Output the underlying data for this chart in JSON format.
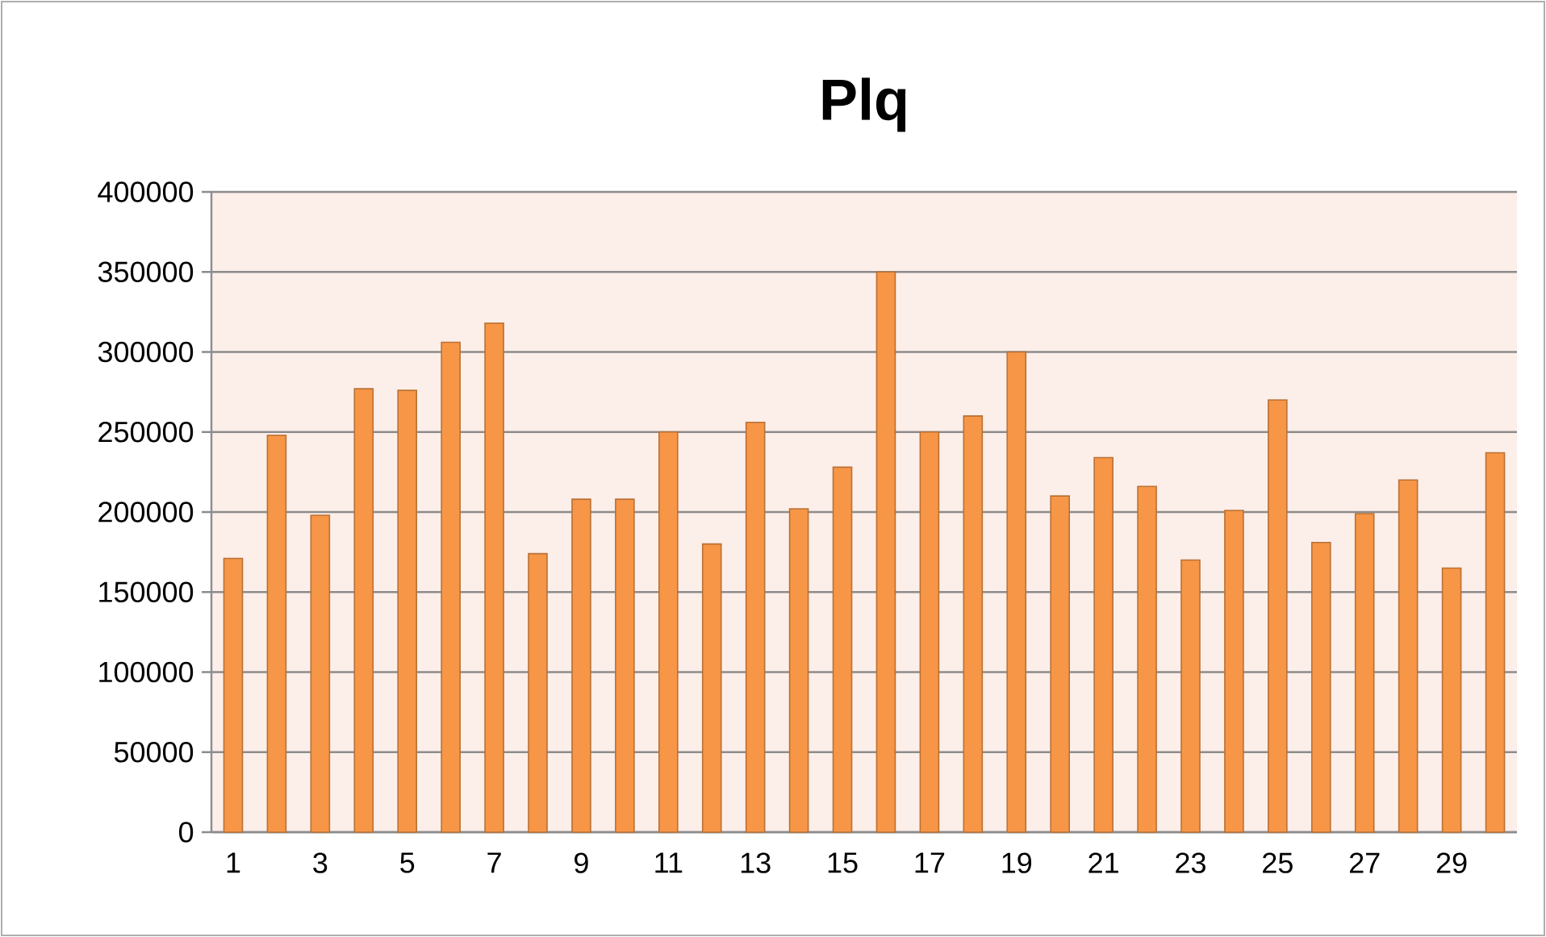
{
  "chart_data": {
    "type": "bar",
    "title": "Plq",
    "categories": [
      "1",
      null,
      "3",
      null,
      "5",
      null,
      "7",
      null,
      "9",
      null,
      "11",
      null,
      "13",
      null,
      "15",
      null,
      "17",
      null,
      "19",
      null,
      "21",
      null,
      "23",
      null,
      "25",
      null,
      "27",
      null,
      "29",
      null
    ],
    "values": [
      171000,
      248000,
      198000,
      277000,
      276000,
      306000,
      318000,
      174000,
      208000,
      208000,
      250000,
      180000,
      256000,
      202000,
      228000,
      350000,
      250000,
      260000,
      300000,
      210000,
      234000,
      216000,
      170000,
      201000,
      270000,
      181000,
      199000,
      220000,
      165000,
      237000
    ],
    "color": "#f79646",
    "ylim": [
      0,
      400000
    ],
    "yticks": [
      0,
      50000,
      100000,
      150000,
      200000,
      250000,
      300000,
      350000,
      400000
    ],
    "grid": "y"
  }
}
